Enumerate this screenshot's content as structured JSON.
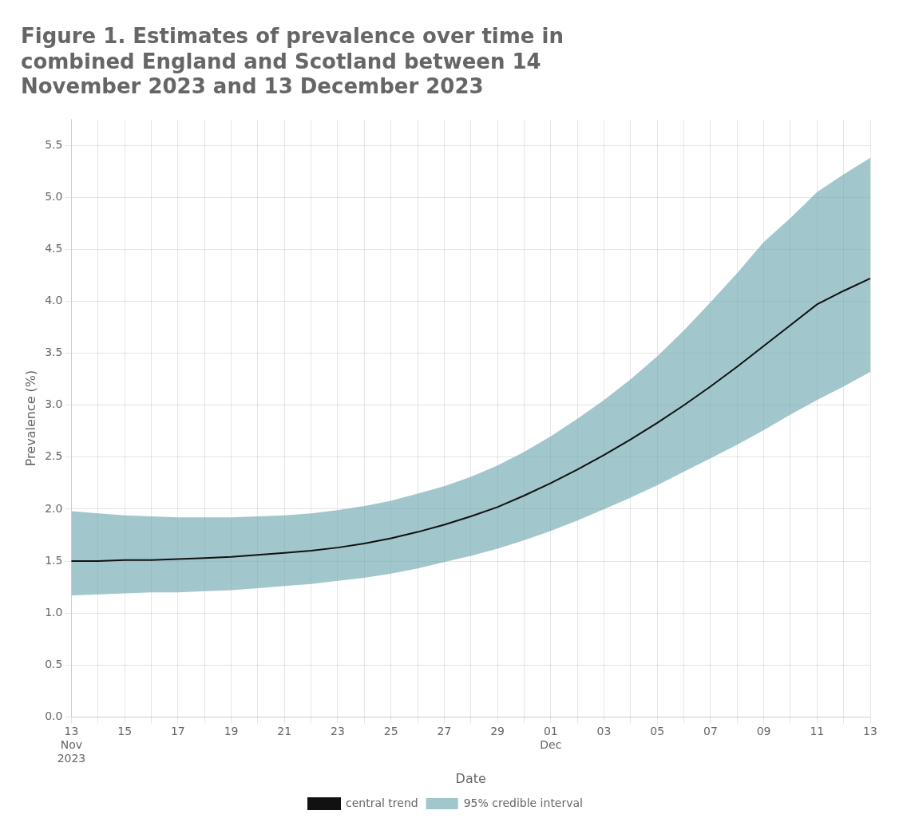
{
  "chart_data": {
    "type": "line",
    "title": "Figure 1. Estimates of prevalence over time in\ncombined England and Scotland between 14\nNovember 2023 and 13 December 2023",
    "xlabel": "Date",
    "ylabel": "Prevalence (%)",
    "categories": [
      "13\nNov\n2023",
      null,
      "15",
      null,
      "17",
      null,
      "19",
      null,
      "21",
      null,
      "23",
      null,
      "25",
      null,
      "27",
      null,
      "29",
      null,
      "01\nDec",
      null,
      "03",
      null,
      "05",
      null,
      "07",
      null,
      "09",
      null,
      "11",
      null,
      "13"
    ],
    "series": [
      {
        "name": "central trend",
        "color": "#111111",
        "values": [
          1.5,
          1.5,
          1.51,
          1.51,
          1.52,
          1.53,
          1.54,
          1.56,
          1.58,
          1.6,
          1.63,
          1.67,
          1.72,
          1.78,
          1.85,
          1.93,
          2.02,
          2.13,
          2.25,
          2.38,
          2.52,
          2.67,
          2.83,
          3.0,
          3.18,
          3.37,
          3.57,
          3.77,
          3.97,
          4.1,
          4.22
        ]
      },
      {
        "name": "95% credible interval",
        "type": "area",
        "color": "#6fa8b0",
        "lower": [
          1.17,
          1.18,
          1.19,
          1.2,
          1.2,
          1.21,
          1.22,
          1.24,
          1.26,
          1.28,
          1.31,
          1.34,
          1.38,
          1.43,
          1.49,
          1.55,
          1.62,
          1.7,
          1.79,
          1.89,
          2.0,
          2.11,
          2.23,
          2.36,
          2.49,
          2.62,
          2.76,
          2.91,
          3.05,
          3.18,
          3.32
        ],
        "upper": [
          1.98,
          1.96,
          1.94,
          1.93,
          1.92,
          1.92,
          1.92,
          1.93,
          1.94,
          1.96,
          1.99,
          2.03,
          2.08,
          2.15,
          2.22,
          2.31,
          2.42,
          2.55,
          2.7,
          2.87,
          3.05,
          3.25,
          3.47,
          3.72,
          3.99,
          4.27,
          4.57,
          4.8,
          5.05,
          5.22,
          5.38
        ]
      }
    ],
    "ylim": [
      0.0,
      5.75
    ],
    "yticks": [
      {
        "value": 0.0,
        "label": "0.0"
      },
      0.5,
      {
        "value": 1.0,
        "label": "1.0"
      },
      1.5,
      {
        "value": 2.0,
        "label": "2.0"
      },
      2.5,
      {
        "value": 3.0,
        "label": "3.0"
      },
      3.5,
      {
        "value": 4.0,
        "label": "4.0"
      },
      4.5,
      {
        "value": 5.0,
        "label": "5.0"
      },
      5.5
    ],
    "grid": true,
    "legend": "bottom"
  }
}
